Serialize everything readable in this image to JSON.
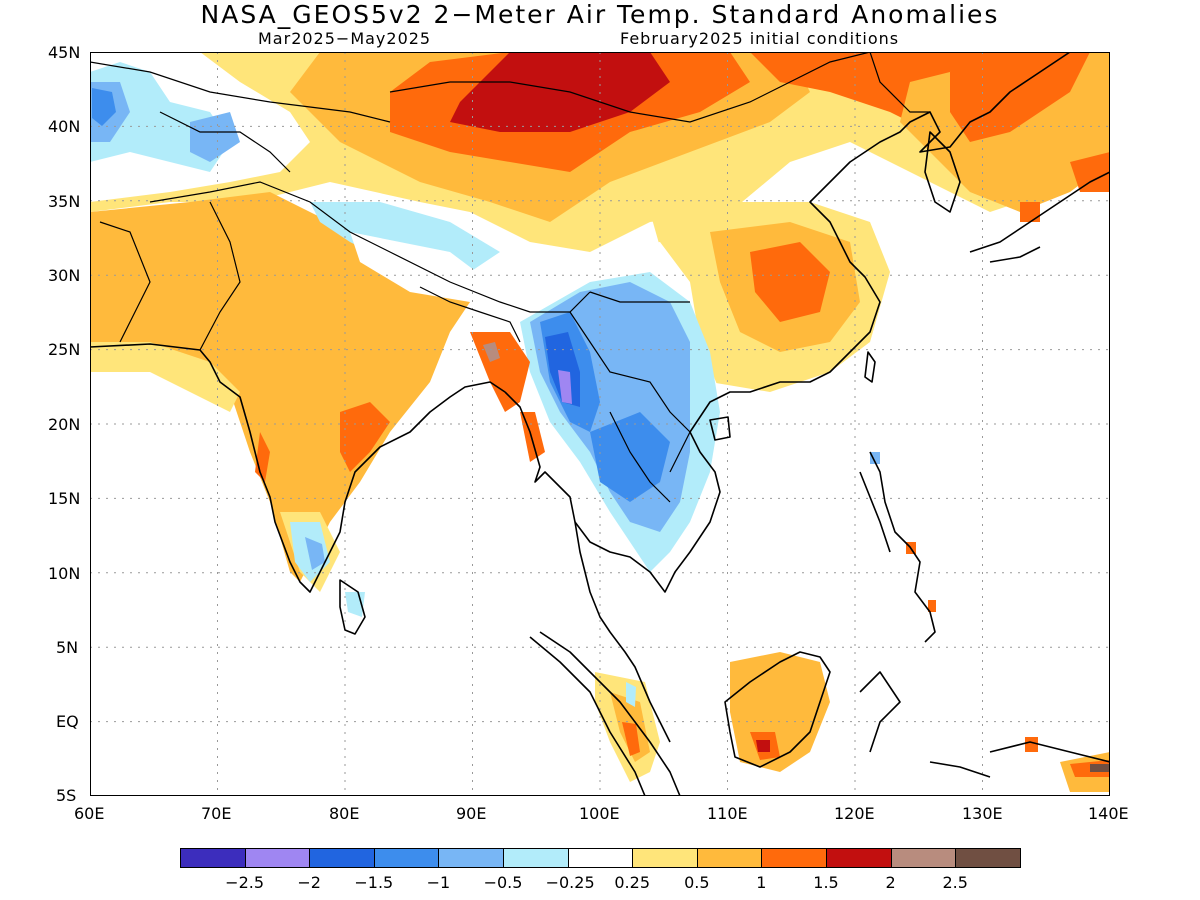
{
  "title": "NASA_GEOS5v2 2−Meter Air Temp. Standard Anomalies",
  "period": "Mar2025−May2025",
  "init": "February2025 initial conditions",
  "lat_labels": [
    "45N",
    "40N",
    "35N",
    "30N",
    "25N",
    "20N",
    "15N",
    "10N",
    "5N",
    "EQ",
    "5S"
  ],
  "lon_labels": [
    "60E",
    "70E",
    "80E",
    "90E",
    "100E",
    "110E",
    "120E",
    "130E",
    "140E"
  ],
  "colorbar": {
    "colors": [
      "#3c2dbd",
      "#9f86f2",
      "#2165e0",
      "#3d8ded",
      "#78b6f5",
      "#b2ecfa",
      "#ffffff",
      "#ffe57a",
      "#ffba3c",
      "#ff6a0c",
      "#c20f0f",
      "#b88c7e",
      "#704f42"
    ],
    "labels": [
      "−2.5",
      "−2",
      "−1.5",
      "−1",
      "−0.5",
      "−0.25",
      "0.25",
      "0.5",
      "1",
      "1.5",
      "2",
      "2.5"
    ]
  }
}
